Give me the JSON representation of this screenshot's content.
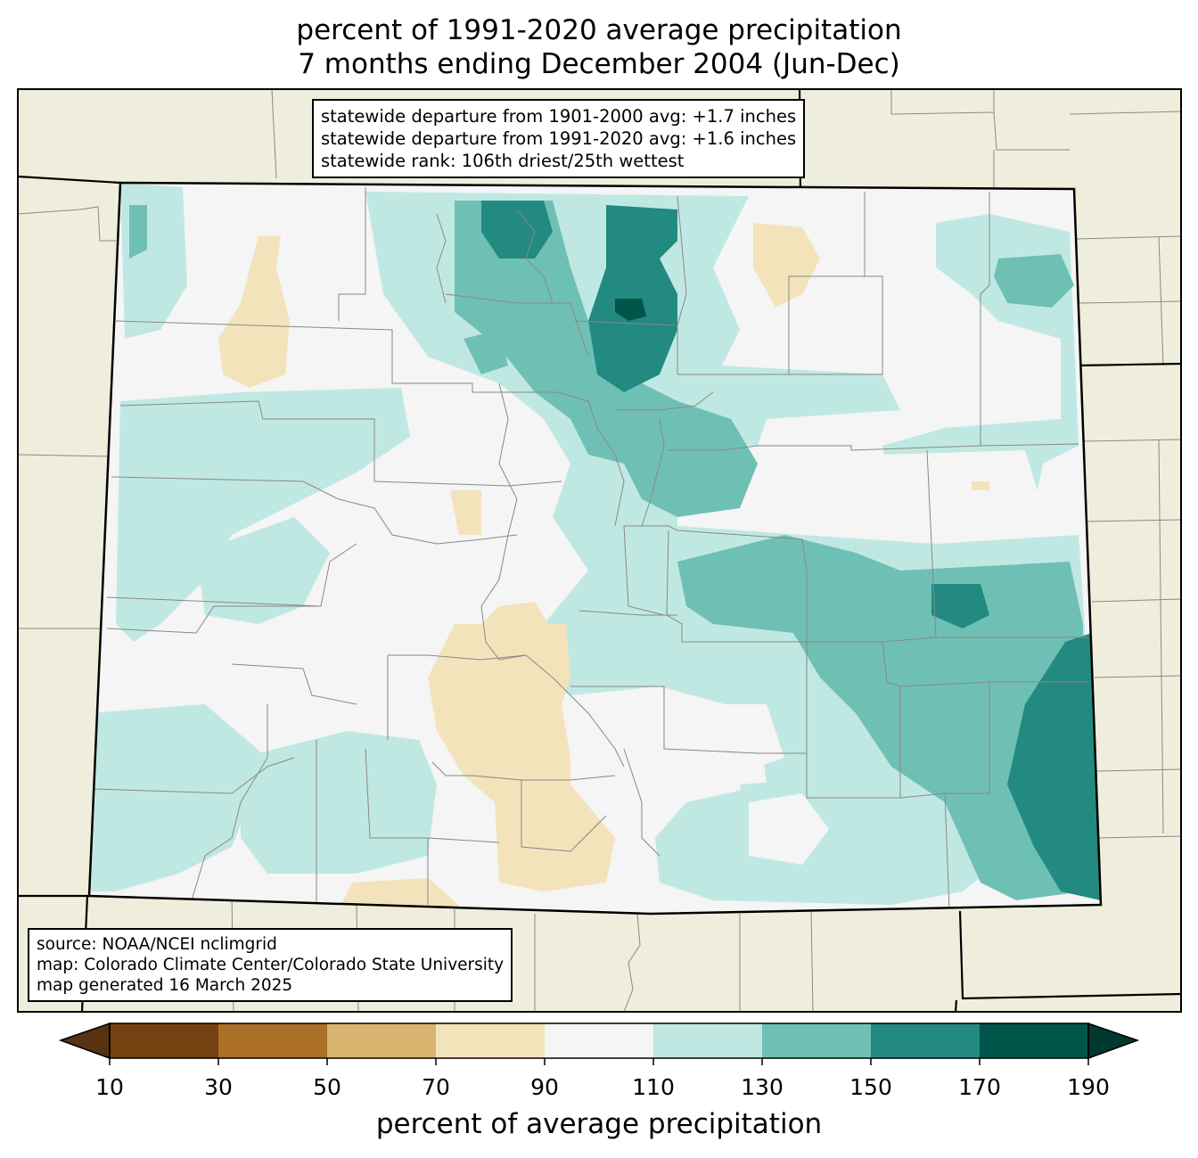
{
  "title": {
    "line1": "percent of 1991-2020 average precipitation",
    "line2": "7 months ending December 2004 (Jun-Dec)"
  },
  "stats": {
    "line1": "statewide departure from 1901-2000 avg: +1.7 inches",
    "line2": "statewide departure from 1991-2020 avg: +1.6 inches",
    "line3": "statewide rank: 106th driest/25th wettest"
  },
  "credits": {
    "line1": "source: NOAA/NCEI nclimgrid",
    "line2": "map: Colorado Climate Center/Colorado State University",
    "line3": "map generated 16 March 2025"
  },
  "colorbar": {
    "label": "percent of average precipitation",
    "ticks": [
      "10",
      "30",
      "50",
      "70",
      "90",
      "110",
      "130",
      "150",
      "170",
      "190"
    ],
    "colors": [
      "#734210",
      "#ab6f26",
      "#d9b46f",
      "#f3e3bb",
      "#f4f5f4",
      "#c0e8e2",
      "#6fc0b4",
      "#228a80",
      "#01564b"
    ],
    "under_color": "#563310",
    "over_color": "#00392f"
  },
  "colors": {
    "background_states": "#efeedc",
    "below_70_90": "#f3e3bb",
    "normal_90_110": "#f4f5f4",
    "above_110_130": "#c0e8e2",
    "above_130_150": "#6fc0b4",
    "above_150_170": "#228a80",
    "above_170_190": "#01564b"
  }
}
